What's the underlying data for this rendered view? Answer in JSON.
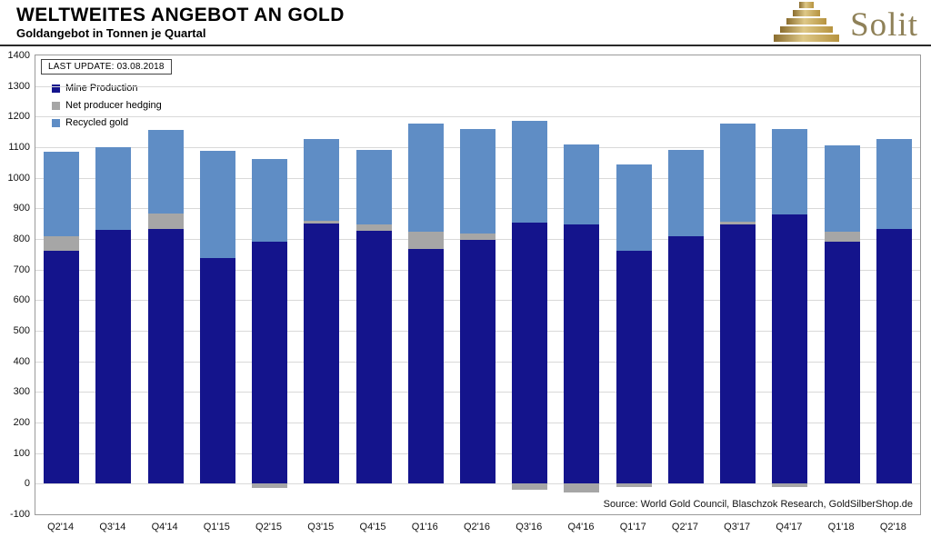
{
  "header": {
    "title": "WELTWEITES ANGEBOT AN GOLD",
    "subtitle": "Goldangebot in Tonnen je Quartal",
    "logo_text": "Solit"
  },
  "chart_data": {
    "type": "bar",
    "stacked": true,
    "title": "WELTWEITES ANGEBOT AN GOLD",
    "subtitle": "Goldangebot in Tonnen je Quartal",
    "last_update": "LAST UPDATE: 03.08.2018",
    "source": "Source: World Gold Council, Blaschzok Research, GoldSilberShop.de",
    "categories": [
      "Q2'14",
      "Q3'14",
      "Q4'14",
      "Q1'15",
      "Q2'15",
      "Q3'15",
      "Q4'15",
      "Q1'16",
      "Q2'16",
      "Q3'16",
      "Q4'16",
      "Q1'17",
      "Q2'17",
      "Q3'17",
      "Q4'17",
      "Q1'18",
      "Q2'18"
    ],
    "series": [
      {
        "name": "Mine Production",
        "color": "#14148c",
        "values": [
          760,
          830,
          832,
          737,
          790,
          850,
          828,
          768,
          798,
          853,
          848,
          760,
          808,
          848,
          880,
          790,
          833
        ]
      },
      {
        "name": "Net producer hedging",
        "color": "#a6a6a6",
        "values": [
          50,
          0,
          50,
          0,
          -15,
          8,
          20,
          55,
          20,
          -20,
          -30,
          -10,
          0,
          8,
          -12,
          35,
          0
        ]
      },
      {
        "name": "Recycled gold",
        "color": "#5f8dc5",
        "values": [
          275,
          270,
          273,
          350,
          270,
          270,
          244,
          355,
          342,
          332,
          260,
          285,
          282,
          320,
          278,
          280,
          295
        ]
      }
    ],
    "ylim": [
      -100,
      1400
    ],
    "ytick_step": 100,
    "xlabel": "",
    "ylabel": "",
    "grid": true,
    "legend_position": "top-left-inside"
  },
  "colors": {
    "grid": "#d9d9d9",
    "logo_gold_dark": "#8a6d2f",
    "logo_gold_light": "#d9bf7f",
    "logo_text": "#8f8158"
  }
}
